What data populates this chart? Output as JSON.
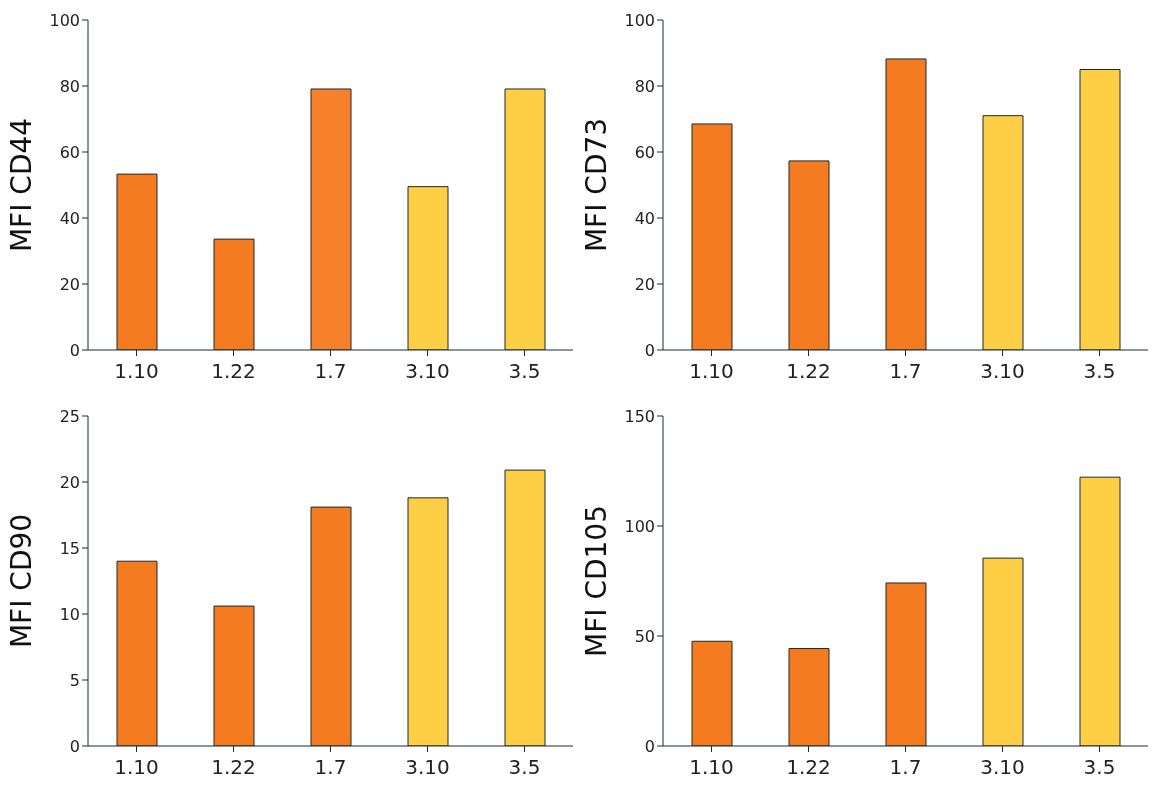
{
  "chart_data": [
    {
      "type": "bar",
      "ylabel": "MFI CD44",
      "categories": [
        "1.10",
        "1.22",
        "1.7",
        "3.10",
        "3.5"
      ],
      "values": [
        53.3,
        33.6,
        79.1,
        49.5,
        79.1
      ],
      "colors": [
        "#f47b20",
        "#f47b20",
        "#f6812a",
        "#fecf45",
        "#fecf45"
      ],
      "ylim": [
        0,
        100
      ],
      "yticks": [
        0,
        20,
        40,
        60,
        80,
        100
      ]
    },
    {
      "type": "bar",
      "ylabel": "MFI CD73",
      "categories": [
        "1.10",
        "1.22",
        "1.7",
        "3.10",
        "3.5"
      ],
      "values": [
        68.5,
        57.3,
        88.2,
        71.0,
        85.0
      ],
      "colors": [
        "#f47b20",
        "#f47b20",
        "#f47b20",
        "#fecf45",
        "#fecf45"
      ],
      "ylim": [
        0,
        100
      ],
      "yticks": [
        0,
        20,
        40,
        60,
        80,
        100
      ]
    },
    {
      "type": "bar",
      "ylabel": "MFI CD90",
      "categories": [
        "1.10",
        "1.22",
        "1.7",
        "3.10",
        "3.5"
      ],
      "values": [
        14.0,
        10.6,
        18.1,
        18.8,
        20.9
      ],
      "colors": [
        "#f47b20",
        "#f47b20",
        "#f47b20",
        "#fecf45",
        "#fecf45"
      ],
      "ylim": [
        0,
        25
      ],
      "yticks": [
        0,
        5,
        10,
        15,
        20,
        25
      ]
    },
    {
      "type": "bar",
      "ylabel": "MFI CD105",
      "categories": [
        "1.10",
        "1.22",
        "1.7",
        "3.10",
        "3.5"
      ],
      "values": [
        47.6,
        44.3,
        74.1,
        85.4,
        122.2
      ],
      "colors": [
        "#f47b20",
        "#f47b20",
        "#f47b20",
        "#fecf45",
        "#fecf45"
      ],
      "ylim": [
        0,
        150
      ],
      "yticks": [
        0,
        50,
        100,
        150
      ]
    }
  ]
}
